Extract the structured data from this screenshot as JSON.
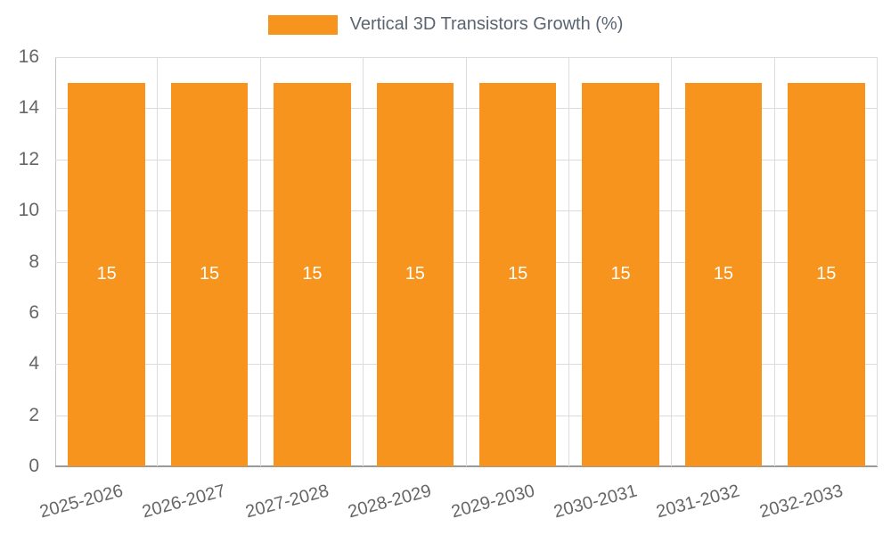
{
  "chart_data": {
    "type": "bar",
    "title": "Vertical 3D Transistors Growth (%)",
    "categories": [
      "2025-2026",
      "2026-2027",
      "2027-2028",
      "2028-2029",
      "2029-2030",
      "2030-2031",
      "2031-2032",
      "2032-2033"
    ],
    "values": [
      15,
      15,
      15,
      15,
      15,
      15,
      15,
      15
    ],
    "bar_labels": [
      "15",
      "15",
      "15",
      "15",
      "15",
      "15",
      "15",
      "15"
    ],
    "xlabel": "",
    "ylabel": "",
    "ylim": [
      0,
      16
    ],
    "yticks": [
      0,
      2,
      4,
      6,
      8,
      10,
      12,
      14,
      16
    ],
    "grid": true,
    "legend_position": "top",
    "bar_color": "#F7941E",
    "bar_label_color": "#FFFFFF",
    "tick_color": "#666666",
    "grid_color": "#DCDCDC",
    "axis_left_color": "#C4C4C4",
    "axis_bottom_color": "#9A9A9A",
    "legend_text_color": "#5A6572",
    "background": "#FFFFFF"
  }
}
